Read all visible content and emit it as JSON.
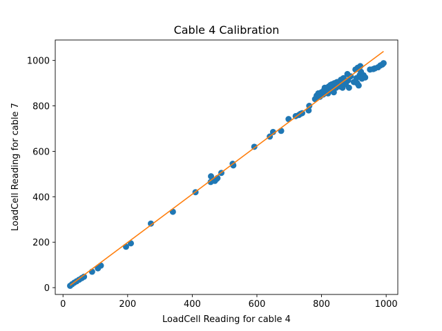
{
  "chart_data": {
    "type": "scatter",
    "title": "Cable 4 Calibration",
    "xlabel": "LoadCell Reading for cable 4",
    "ylabel": "LoadCell Reading for cable 7",
    "xlim": [
      -24,
      1036
    ],
    "ylim": [
      -30,
      1090
    ],
    "xticks": [
      0,
      200,
      400,
      600,
      800,
      1000
    ],
    "yticks": [
      0,
      200,
      400,
      600,
      800,
      1000
    ],
    "grid": false,
    "colors": {
      "points": "#1f77b4",
      "fit": "#ff7f0e"
    },
    "series": [
      {
        "kind": "points",
        "x": [
          22,
          28,
          35,
          42,
          50,
          58,
          65,
          90,
          108,
          117,
          195,
          210,
          272,
          340,
          410,
          457,
          458,
          470,
          475,
          478,
          490,
          525,
          527,
          592,
          640,
          650,
          675,
          698,
          720,
          730,
          735,
          740,
          760,
          762,
          780,
          785,
          790,
          795,
          800,
          805,
          808,
          810,
          815,
          818,
          820,
          822,
          825,
          828,
          830,
          832,
          835,
          838,
          840,
          842,
          845,
          848,
          850,
          855,
          858,
          860,
          862,
          865,
          868,
          870,
          875,
          880,
          882,
          885,
          890,
          900,
          905,
          908,
          910,
          912,
          915,
          918,
          920,
          922,
          925,
          930,
          935,
          950,
          960,
          965,
          975,
          982,
          988,
          992
        ],
        "y": [
          8,
          15,
          22,
          28,
          35,
          42,
          48,
          70,
          85,
          97,
          180,
          195,
          282,
          334,
          420,
          465,
          490,
          470,
          478,
          482,
          505,
          545,
          538,
          620,
          665,
          685,
          690,
          742,
          755,
          760,
          765,
          768,
          780,
          800,
          830,
          845,
          855,
          840,
          860,
          850,
          870,
          880,
          865,
          875,
          855,
          885,
          880,
          892,
          870,
          895,
          885,
          860,
          900,
          890,
          880,
          905,
          895,
          898,
          885,
          915,
          900,
          880,
          922,
          905,
          895,
          940,
          912,
          880,
          930,
          905,
          960,
          922,
          900,
          968,
          890,
          935,
          975,
          950,
          920,
          935,
          925,
          960,
          962,
          965,
          970,
          978,
          982,
          988
        ]
      },
      {
        "kind": "fit-line",
        "x": [
          22,
          992
        ],
        "y": [
          10,
          1040
        ]
      }
    ]
  }
}
